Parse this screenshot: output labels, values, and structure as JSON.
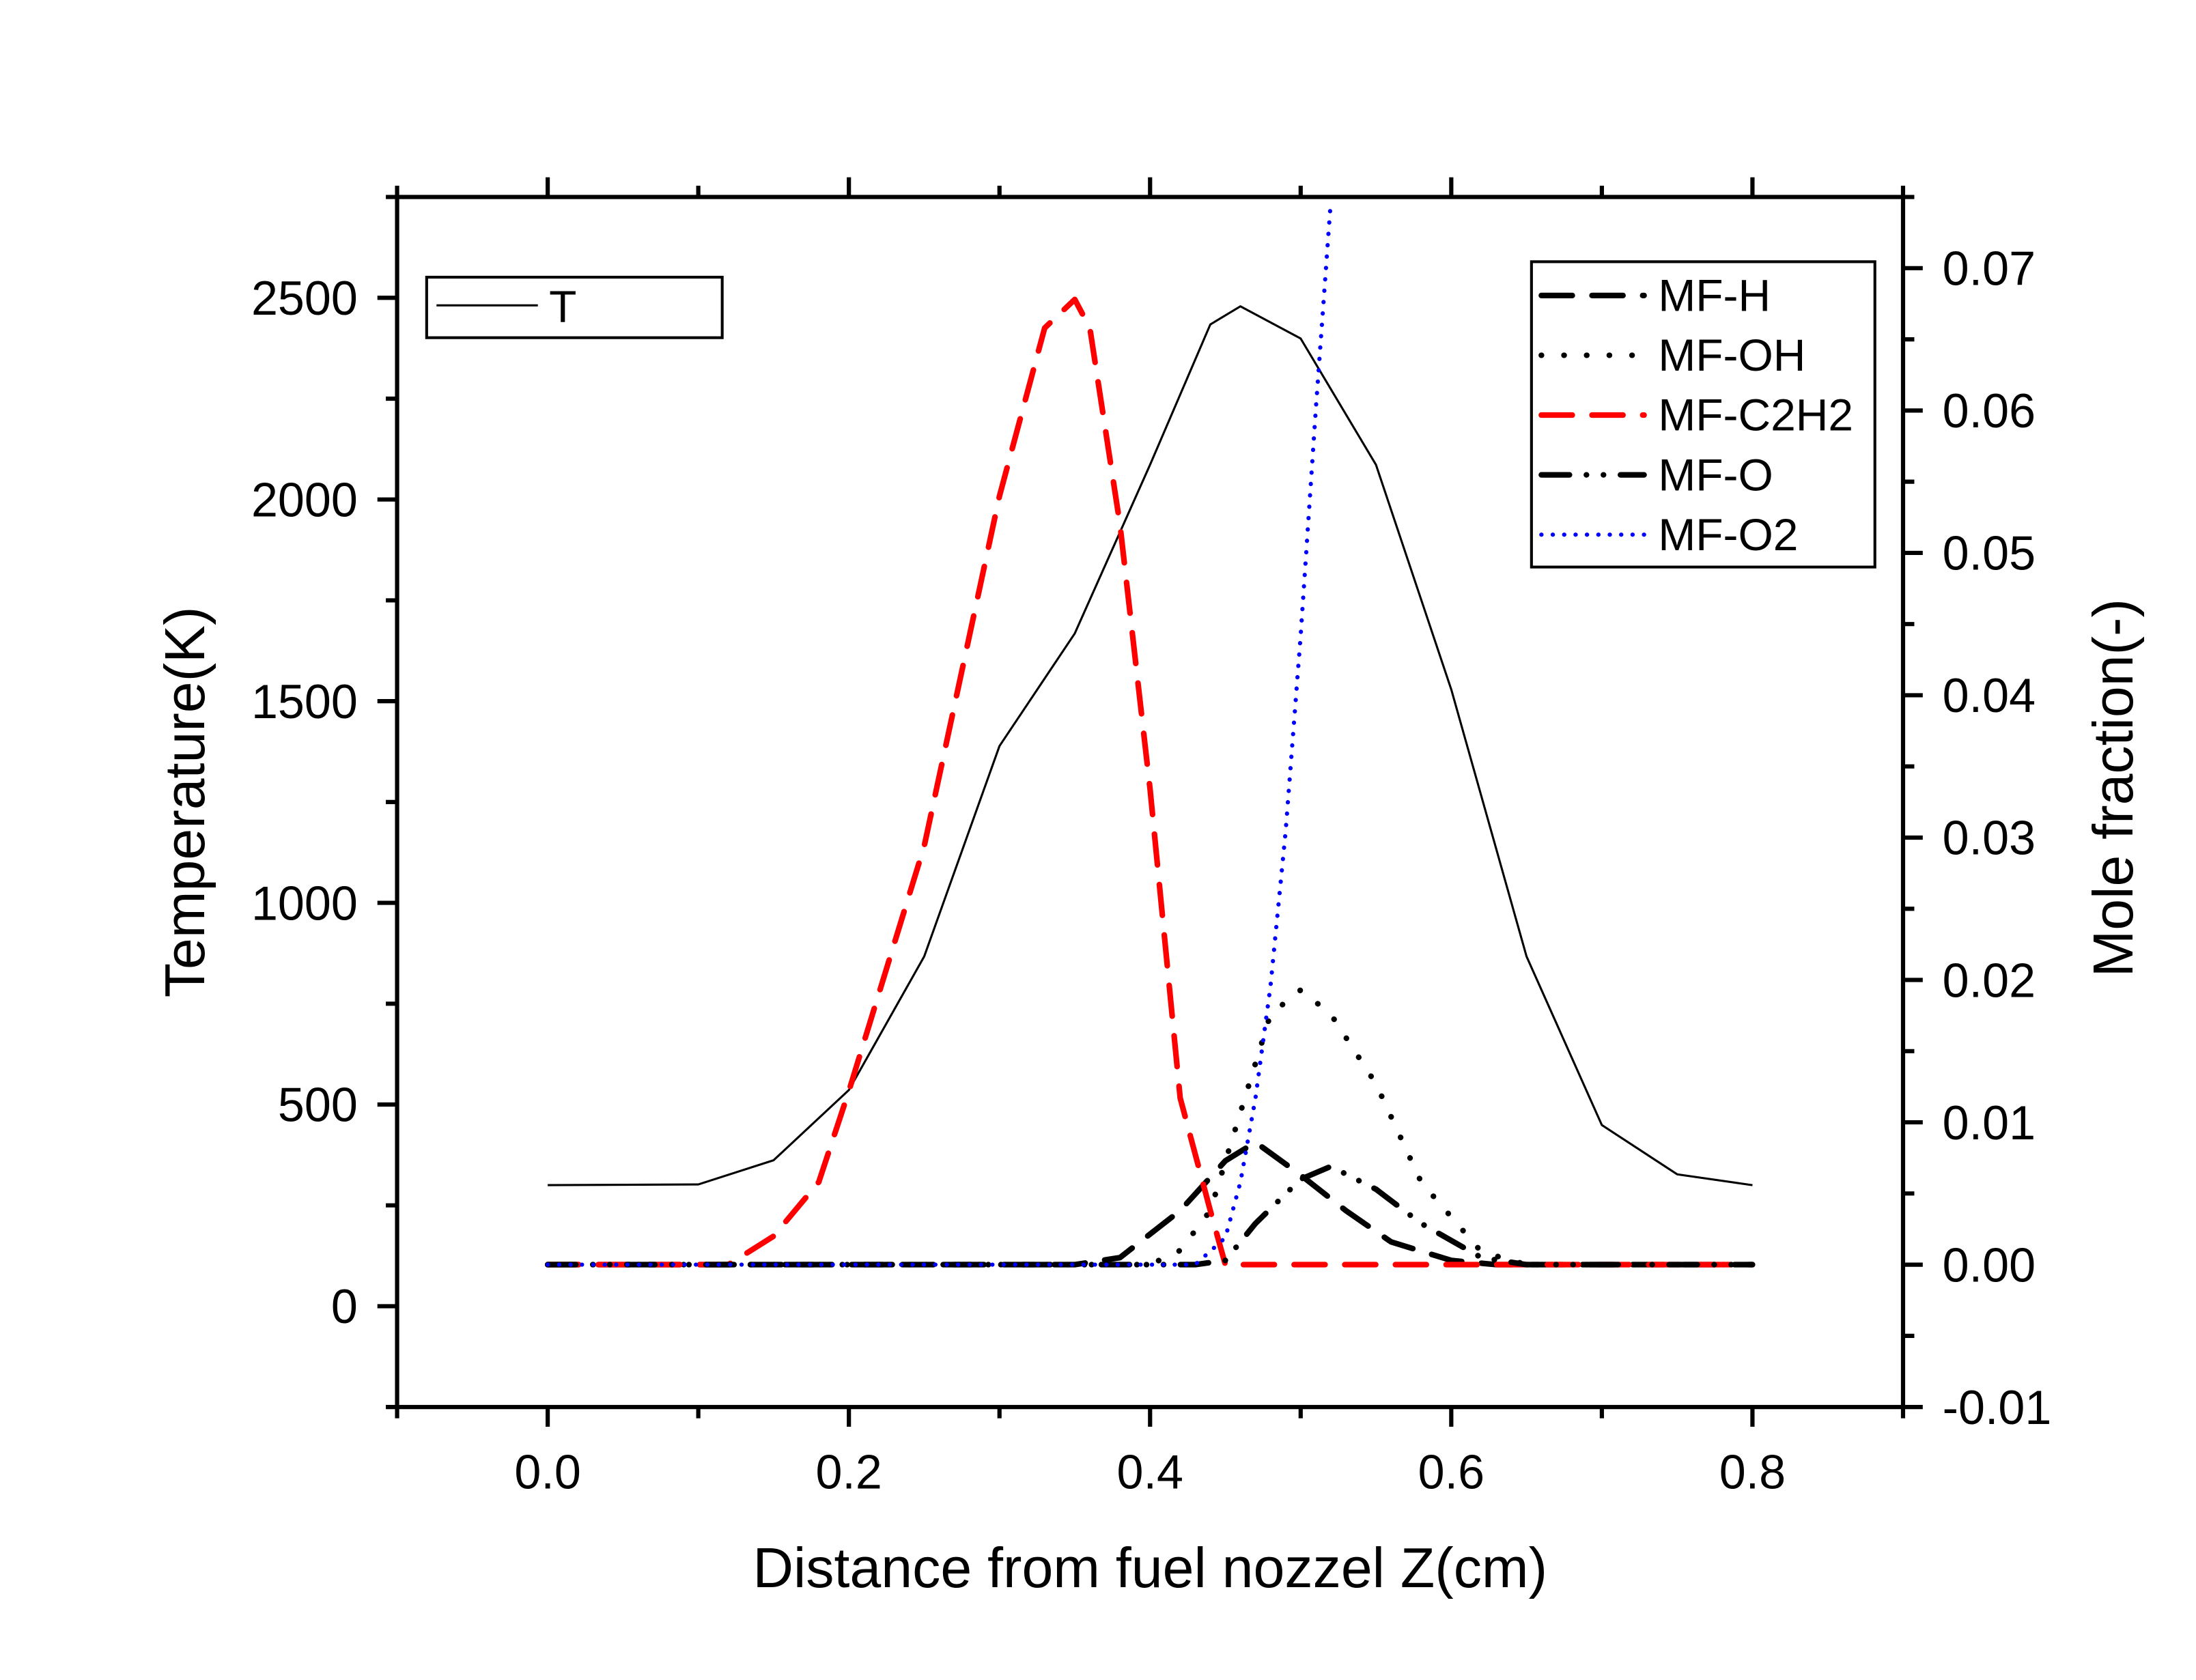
{
  "chart_data": {
    "type": "line",
    "title": "",
    "xlabel": "Distance from fuel nozzel Z(cm)",
    "ylabel": "Temperature(K)",
    "ylabel_right": "Mole fraction(-)",
    "xlim": [
      -0.1,
      0.9
    ],
    "ylim": [
      -250,
      2750
    ],
    "ylim_right": [
      -0.01,
      0.075
    ],
    "grid": false,
    "x_ticks": [
      "0.0",
      "0.2",
      "0.4",
      "0.6",
      "0.8"
    ],
    "x_tick_values": [
      0.0,
      0.2,
      0.4,
      0.6,
      0.8
    ],
    "y_ticks": [
      "0",
      "500",
      "1000",
      "1500",
      "2000",
      "2500"
    ],
    "y_tick_values": [
      0,
      500,
      1000,
      1500,
      2000,
      2500
    ],
    "y_right_ticks": [
      "-0.01",
      "0.00",
      "0.01",
      "0.02",
      "0.03",
      "0.04",
      "0.05",
      "0.06",
      "0.07"
    ],
    "y_right_tick_values": [
      -0.01,
      0,
      0.01,
      0.02,
      0.03,
      0.04,
      0.05,
      0.06,
      0.07
    ],
    "legend_left": {
      "placement": "top-left",
      "entries": [
        "T"
      ]
    },
    "legend_right": {
      "placement": "top-right",
      "entries": [
        "MF-H",
        "MF-OH",
        "MF-C2H2",
        "MF-O",
        "MF-O2"
      ]
    },
    "series": [
      {
        "name": "T",
        "axis": "left",
        "color": "#000000",
        "style": "solid",
        "x": [
          0.0,
          0.1,
          0.15,
          0.2,
          0.25,
          0.3,
          0.35,
          0.4,
          0.44,
          0.46,
          0.5,
          0.55,
          0.6,
          0.65,
          0.7,
          0.75,
          0.8
        ],
        "y": [
          300,
          302,
          362,
          536,
          867,
          1389,
          1668,
          2086,
          2434,
          2479,
          2399,
          2086,
          1529,
          867,
          449,
          327,
          300
        ]
      },
      {
        "name": "MF-H",
        "axis": "right",
        "color": "#000000",
        "style": "dash",
        "x": [
          0.0,
          0.35,
          0.38,
          0.42,
          0.45,
          0.47,
          0.5,
          0.53,
          0.56,
          0.6,
          0.63,
          0.8
        ],
        "y": [
          0,
          0,
          0.0005,
          0.0038,
          0.0073,
          0.0086,
          0.0063,
          0.0038,
          0.0016,
          0.0003,
          0,
          0
        ]
      },
      {
        "name": "MF-OH",
        "axis": "right",
        "color": "#000000",
        "style": "dot",
        "x": [
          0.0,
          0.4,
          0.42,
          0.44,
          0.46,
          0.48,
          0.5,
          0.52,
          0.55,
          0.58,
          0.62,
          0.65,
          0.8
        ],
        "y": [
          0,
          0,
          0.001,
          0.0038,
          0.0107,
          0.0176,
          0.0193,
          0.0176,
          0.0127,
          0.0058,
          0.0009,
          0,
          0
        ]
      },
      {
        "name": "MF-C2H2",
        "axis": "right",
        "color": "#ff0000",
        "style": "dash",
        "x": [
          0.0,
          0.12,
          0.15,
          0.18,
          0.2,
          0.25,
          0.3,
          0.33,
          0.35,
          0.36,
          0.38,
          0.4,
          0.42,
          0.44,
          0.45,
          0.8
        ],
        "y": [
          0,
          0,
          0.002,
          0.0058,
          0.0122,
          0.0294,
          0.054,
          0.0658,
          0.0678,
          0.0658,
          0.052,
          0.0334,
          0.0117,
          0.0038,
          0,
          0
        ]
      },
      {
        "name": "MF-O",
        "axis": "right",
        "color": "#000000",
        "style": "dashdotdot",
        "x": [
          0.0,
          0.43,
          0.45,
          0.47,
          0.5,
          0.52,
          0.55,
          0.58,
          0.62,
          0.65,
          0.8
        ],
        "y": [
          0,
          0,
          0.0003,
          0.0029,
          0.006,
          0.0069,
          0.0053,
          0.0029,
          0.0005,
          0,
          0
        ]
      },
      {
        "name": "MF-O2",
        "axis": "right",
        "color": "#0000ff",
        "style": "shortdot",
        "x": [
          0.0,
          0.43,
          0.45,
          0.46,
          0.47,
          0.48,
          0.49,
          0.5,
          0.51,
          0.52
        ],
        "y": [
          0,
          0,
          0.0019,
          0.0058,
          0.0117,
          0.0196,
          0.0304,
          0.0442,
          0.06,
          0.0747
        ]
      }
    ]
  }
}
